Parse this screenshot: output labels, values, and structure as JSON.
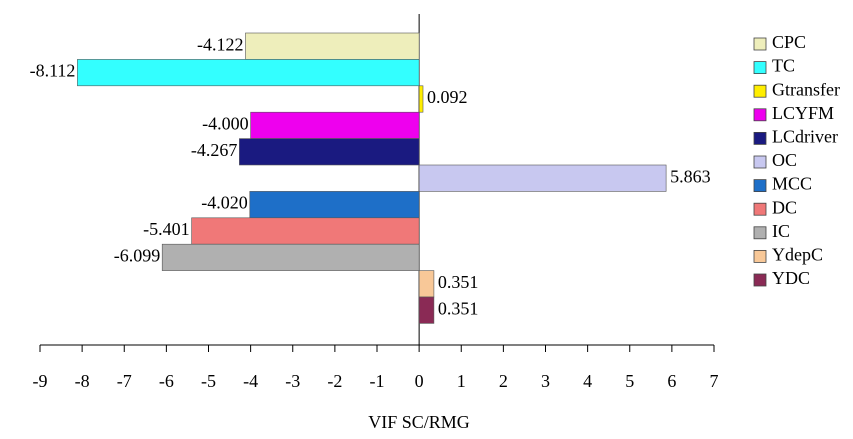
{
  "chart_data": {
    "type": "bar",
    "orientation": "horizontal",
    "xlabel": "VIF SC/RMG",
    "xlim": [
      -9,
      7
    ],
    "xticks": [
      -9,
      -8,
      -7,
      -6,
      -5,
      -4,
      -3,
      -2,
      -1,
      0,
      1,
      2,
      3,
      4,
      5,
      6,
      7
    ],
    "legend": "right",
    "series": [
      {
        "name": "CPC",
        "color": "#eeeebb",
        "values": [
          -4.122
        ],
        "value_labels": [
          "-4.122"
        ]
      },
      {
        "name": "TC",
        "color": "#33ffff",
        "values": [
          -8.112
        ],
        "value_labels": [
          "-8.112"
        ]
      },
      {
        "name": "Gtransfer",
        "color": "#ffee00",
        "values": [
          0.092
        ],
        "value_labels": [
          "0.092"
        ]
      },
      {
        "name": "LCYFM",
        "color": "#ee00ee",
        "values": [
          -4.0
        ],
        "value_labels": [
          "-4.000"
        ]
      },
      {
        "name": "LCdriver",
        "color": "#1a1a80",
        "values": [
          -4.267
        ],
        "value_labels": [
          "-4.267"
        ]
      },
      {
        "name": "OC",
        "color": "#c8c8f0",
        "values": [
          5.863
        ],
        "value_labels": [
          "5.863"
        ]
      },
      {
        "name": "MCC",
        "color": "#1e6fc8",
        "values": [
          -4.02
        ],
        "value_labels": [
          "-4.020"
        ]
      },
      {
        "name": "DC",
        "color": "#f07878",
        "values": [
          -5.401
        ],
        "value_labels": [
          "-5.401"
        ]
      },
      {
        "name": "IC",
        "color": "#b0b0b0",
        "values": [
          -6.099
        ],
        "value_labels": [
          "-6.099"
        ]
      },
      {
        "name": "YdepC",
        "color": "#f8c898",
        "values": [
          0.351
        ],
        "value_labels": [
          "0.351"
        ]
      },
      {
        "name": "YDC",
        "color": "#8a2a55",
        "values": [
          0.351
        ],
        "value_labels": [
          "0.351"
        ]
      }
    ]
  }
}
